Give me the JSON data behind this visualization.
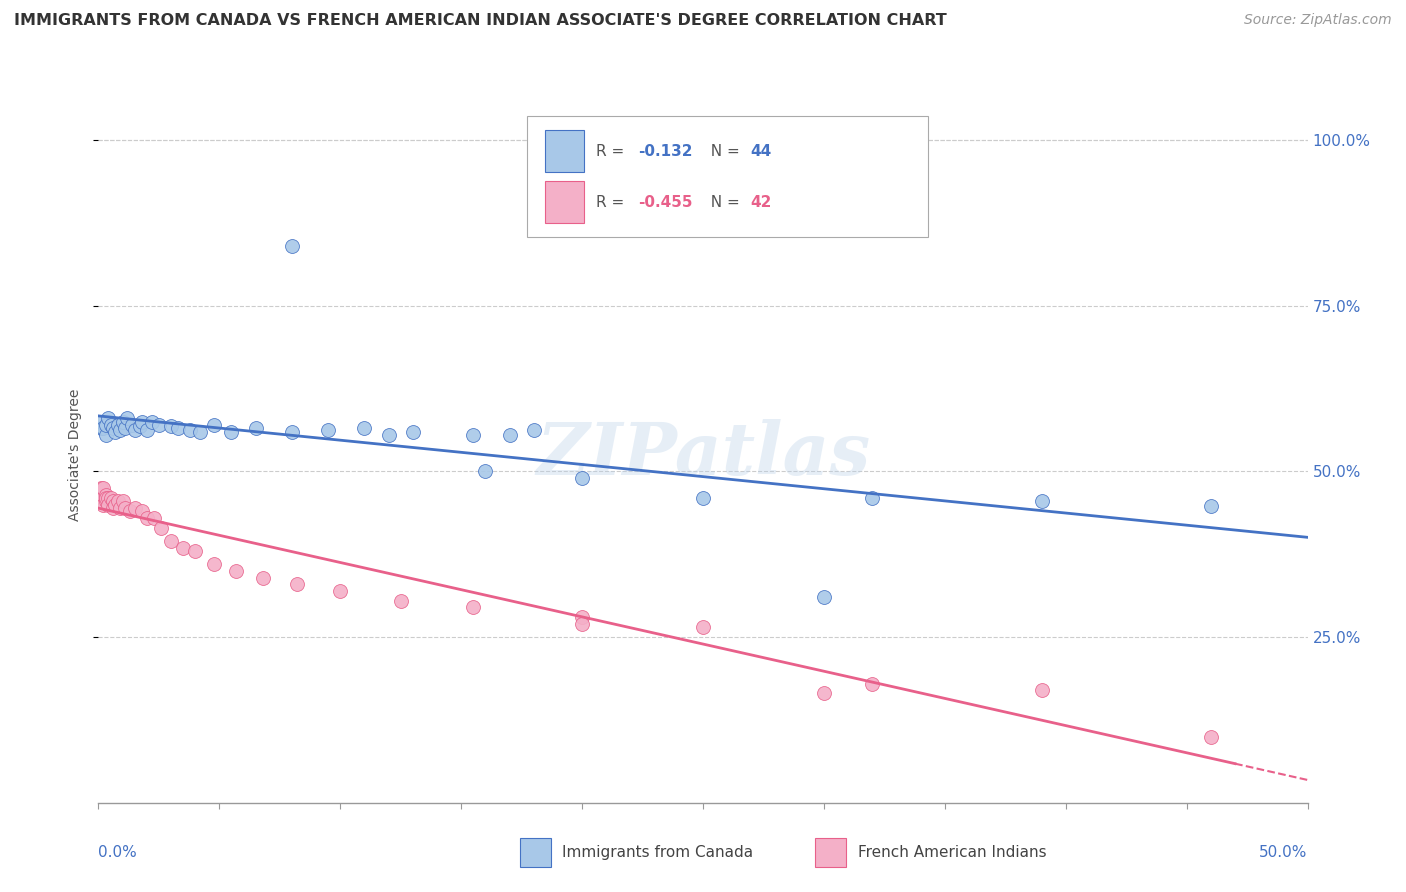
{
  "title": "IMMIGRANTS FROM CANADA VS FRENCH AMERICAN INDIAN ASSOCIATE'S DEGREE CORRELATION CHART",
  "source": "Source: ZipAtlas.com",
  "ylabel": "Associate's Degree",
  "watermark": "ZIPatlas",
  "blue_scatter_x": [
    0.001,
    0.001,
    0.002,
    0.003,
    0.003,
    0.004,
    0.005,
    0.006,
    0.007,
    0.008,
    0.009,
    0.01,
    0.011,
    0.012,
    0.014,
    0.015,
    0.017,
    0.018,
    0.02,
    0.022,
    0.025,
    0.03,
    0.033,
    0.038,
    0.042,
    0.048,
    0.055,
    0.065,
    0.08,
    0.095,
    0.11,
    0.13,
    0.155,
    0.18,
    0.08,
    0.12,
    0.16,
    0.2,
    0.25,
    0.32,
    0.39,
    0.46,
    0.17,
    0.3
  ],
  "blue_scatter_y": [
    0.565,
    0.575,
    0.565,
    0.555,
    0.57,
    0.58,
    0.57,
    0.565,
    0.56,
    0.57,
    0.562,
    0.575,
    0.565,
    0.58,
    0.57,
    0.562,
    0.568,
    0.575,
    0.562,
    0.575,
    0.57,
    0.568,
    0.565,
    0.562,
    0.56,
    0.57,
    0.56,
    0.565,
    0.56,
    0.562,
    0.565,
    0.56,
    0.555,
    0.562,
    0.84,
    0.555,
    0.5,
    0.49,
    0.46,
    0.46,
    0.455,
    0.448,
    0.555,
    0.31
  ],
  "pink_scatter_x": [
    0.001,
    0.001,
    0.001,
    0.002,
    0.002,
    0.002,
    0.003,
    0.003,
    0.003,
    0.004,
    0.004,
    0.005,
    0.006,
    0.006,
    0.007,
    0.008,
    0.009,
    0.01,
    0.011,
    0.013,
    0.015,
    0.018,
    0.02,
    0.023,
    0.026,
    0.03,
    0.035,
    0.04,
    0.048,
    0.057,
    0.068,
    0.082,
    0.1,
    0.125,
    0.155,
    0.2,
    0.25,
    0.32,
    0.39,
    0.2,
    0.3,
    0.46
  ],
  "pink_scatter_y": [
    0.475,
    0.455,
    0.46,
    0.46,
    0.475,
    0.45,
    0.465,
    0.455,
    0.46,
    0.46,
    0.45,
    0.46,
    0.455,
    0.445,
    0.45,
    0.455,
    0.445,
    0.455,
    0.445,
    0.44,
    0.445,
    0.44,
    0.43,
    0.43,
    0.415,
    0.395,
    0.385,
    0.38,
    0.36,
    0.35,
    0.34,
    0.33,
    0.32,
    0.305,
    0.295,
    0.28,
    0.265,
    0.18,
    0.17,
    0.27,
    0.165,
    0.1
  ],
  "blue_color": "#a8c8e8",
  "pink_color": "#f4b0c8",
  "blue_line_color": "#4472c4",
  "pink_line_color": "#e8608a",
  "grid_color": "#cccccc",
  "background_color": "#ffffff",
  "title_color": "#333333",
  "axis_label_color": "#4472c4",
  "marker_size": 100
}
